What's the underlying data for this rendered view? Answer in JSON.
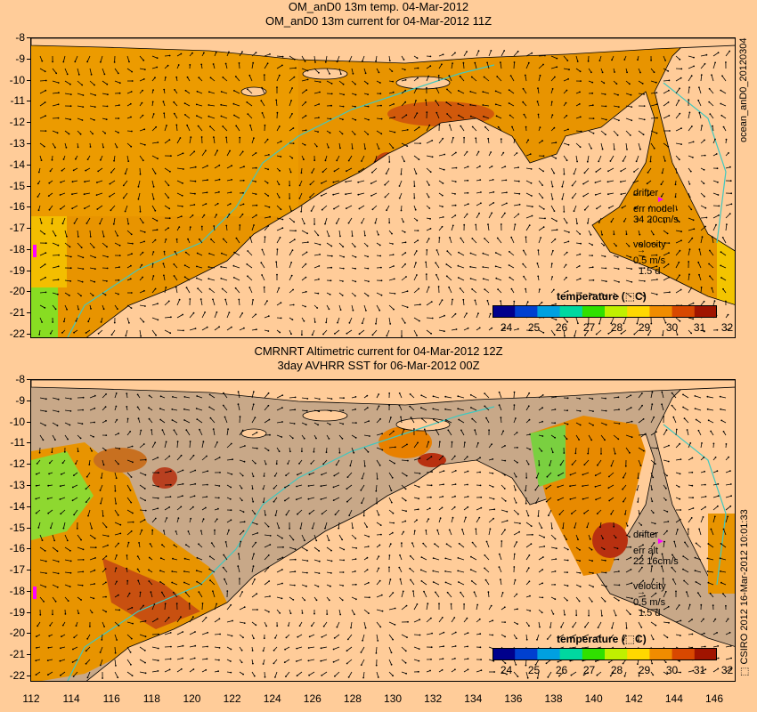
{
  "top_panel": {
    "title_line1": "OM_anD0 13m temp. 04-Mar-2012",
    "title_line2": "OM_anD0 13m current for 04-Mar-2012 11Z",
    "side_label": "ocean_anD0_20120304",
    "legend": {
      "drifter_label": "drifter",
      "err_label": "err model",
      "err_values": "34 20cm/s",
      "velocity_label": "velocity",
      "speed": "0.5 m/s",
      "duration": "1.5 d"
    },
    "colorbar": {
      "title": "temperature (⬚C)",
      "ticks": [
        "24",
        "25",
        "26",
        "27",
        "28",
        "29",
        "30",
        "31",
        "32"
      ]
    }
  },
  "bottom_panel": {
    "title_line1": "CMRNRT Altimetric current for 04-Mar-2012 12Z",
    "title_line2": "3day AVHRR SST for 06-Mar-2012 00Z",
    "side_label": "⬚ CSIRO 2012  16-Mar-2012 10:01:33",
    "legend": {
      "drifter_label": "drifter",
      "err_label": "err alt",
      "err_values": "22 16cm/s",
      "velocity_label": "velocity",
      "speed": "0.5 m/s",
      "duration": "1.5 d"
    },
    "colorbar": {
      "title": "temperature (⬚C)",
      "ticks": [
        "24",
        "25",
        "26",
        "27",
        "28",
        "29",
        "30",
        "31",
        "32"
      ]
    }
  },
  "y_axis_ticks": [
    "-8",
    "-9",
    "-10",
    "-11",
    "-12",
    "-13",
    "-14",
    "-15",
    "-16",
    "-17",
    "-18",
    "-19",
    "-20",
    "-21",
    "-22"
  ],
  "x_axis_ticks": [
    "112",
    "114",
    "116",
    "118",
    "120",
    "122",
    "124",
    "126",
    "128",
    "130",
    "132",
    "134",
    "136",
    "138",
    "140",
    "142",
    "144",
    "146"
  ],
  "colors": {
    "ocean_warm": "#e89400",
    "ocean_hot": "#b83010",
    "ocean_cool": "#f5d000",
    "land": "#ffcc99",
    "cloud": "#c8a888",
    "contour": "#40c8c0",
    "drifter": "#ff00ff",
    "colorbar": [
      "#00008c",
      "#0040d0",
      "#00a0e0",
      "#00d8a0",
      "#30e000",
      "#c0f000",
      "#ffd800",
      "#f08c00",
      "#d84800",
      "#a01400"
    ]
  }
}
